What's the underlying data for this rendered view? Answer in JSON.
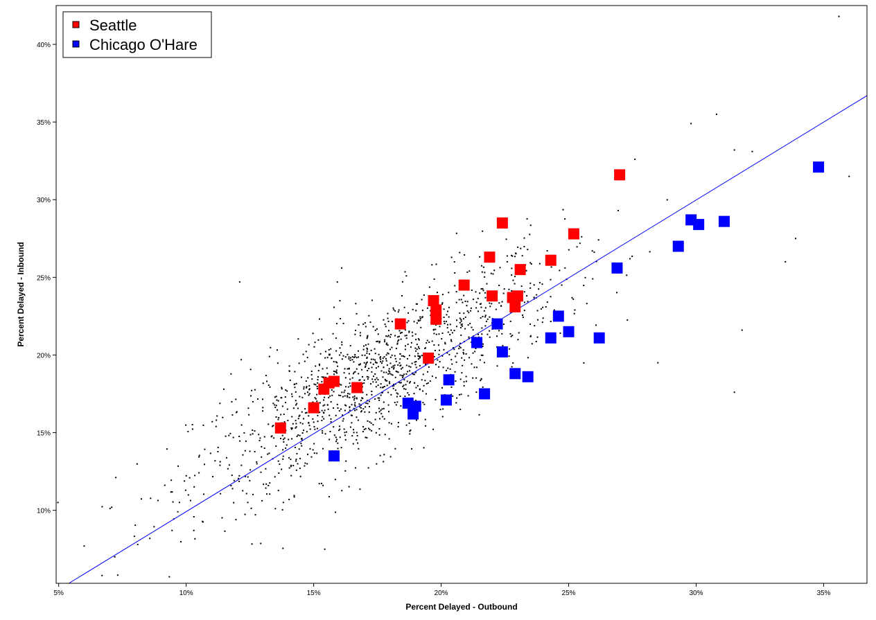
{
  "chart_data": {
    "type": "scatter",
    "title": "",
    "xlabel": "Percent Delayed - Outbound",
    "ylabel": "Percent Delayed - Inbound",
    "xlim": [
      4.9,
      36.7
    ],
    "ylim": [
      5.3,
      42.5
    ],
    "x_ticks": [
      5,
      10,
      15,
      20,
      25,
      30,
      35
    ],
    "x_tick_labels": [
      "5%",
      "10%",
      "15%",
      "20%",
      "25%",
      "30%",
      "35%"
    ],
    "y_ticks": [
      10,
      15,
      20,
      25,
      30,
      35,
      40
    ],
    "y_tick_labels": [
      "10%",
      "15%",
      "20%",
      "25%",
      "30%",
      "35%",
      "40%"
    ],
    "grid": false,
    "legend_position": "top-left",
    "regression_line": {
      "color": "#0000ff",
      "points": [
        [
          5.4,
          5.3
        ],
        [
          36.7,
          36.7
        ]
      ]
    },
    "background_series": {
      "color": "#000000",
      "description_count": 1400,
      "center": [
        17.5,
        18.5
      ],
      "anchor_points": [
        [
          35.6,
          41.8
        ],
        [
          36.0,
          31.5
        ],
        [
          30.8,
          35.5
        ],
        [
          29.8,
          34.9
        ],
        [
          31.5,
          33.2
        ],
        [
          32.2,
          33.1
        ],
        [
          27.6,
          32.6
        ],
        [
          12.1,
          24.7
        ],
        [
          6.0,
          7.7
        ],
        [
          6.7,
          5.8
        ],
        [
          13.9,
          14.0
        ],
        [
          16.1,
          25.6
        ],
        [
          31.5,
          17.6
        ],
        [
          31.8,
          21.6
        ],
        [
          33.5,
          26.0
        ],
        [
          33.9,
          27.5
        ],
        [
          28.5,
          19.5
        ],
        [
          7.2,
          7.0
        ],
        [
          8.1,
          7.8
        ],
        [
          10.3,
          8.7
        ]
      ]
    },
    "series": [
      {
        "name": "Seattle",
        "color": "#ff0000",
        "points": [
          [
            13.7,
            15.3
          ],
          [
            15.0,
            16.6
          ],
          [
            15.4,
            17.8
          ],
          [
            15.6,
            18.2
          ],
          [
            15.8,
            18.3
          ],
          [
            16.7,
            17.9
          ],
          [
            18.4,
            22.0
          ],
          [
            19.5,
            19.8
          ],
          [
            19.7,
            23.5
          ],
          [
            19.8,
            22.9
          ],
          [
            19.8,
            22.3
          ],
          [
            20.9,
            24.5
          ],
          [
            21.9,
            26.3
          ],
          [
            22.0,
            23.8
          ],
          [
            22.4,
            28.5
          ],
          [
            22.8,
            23.7
          ],
          [
            23.0,
            23.8
          ],
          [
            22.9,
            23.1
          ],
          [
            23.1,
            25.5
          ],
          [
            24.3,
            26.1
          ],
          [
            25.2,
            27.8
          ],
          [
            27.0,
            31.6
          ]
        ]
      },
      {
        "name": "Chicago O'Hare",
        "color": "#0000ff",
        "points": [
          [
            15.8,
            13.5
          ],
          [
            18.7,
            16.9
          ],
          [
            18.9,
            16.2
          ],
          [
            19.0,
            16.7
          ],
          [
            20.2,
            17.1
          ],
          [
            20.3,
            18.4
          ],
          [
            21.4,
            20.8
          ],
          [
            21.7,
            17.5
          ],
          [
            22.2,
            22.0
          ],
          [
            22.4,
            20.2
          ],
          [
            22.9,
            18.8
          ],
          [
            23.4,
            18.6
          ],
          [
            24.3,
            21.1
          ],
          [
            24.6,
            22.5
          ],
          [
            25.0,
            21.5
          ],
          [
            26.2,
            21.1
          ],
          [
            26.9,
            25.6
          ],
          [
            29.3,
            27.0
          ],
          [
            29.8,
            28.7
          ],
          [
            30.1,
            28.4
          ],
          [
            31.1,
            28.6
          ],
          [
            34.8,
            32.1
          ]
        ]
      }
    ]
  }
}
